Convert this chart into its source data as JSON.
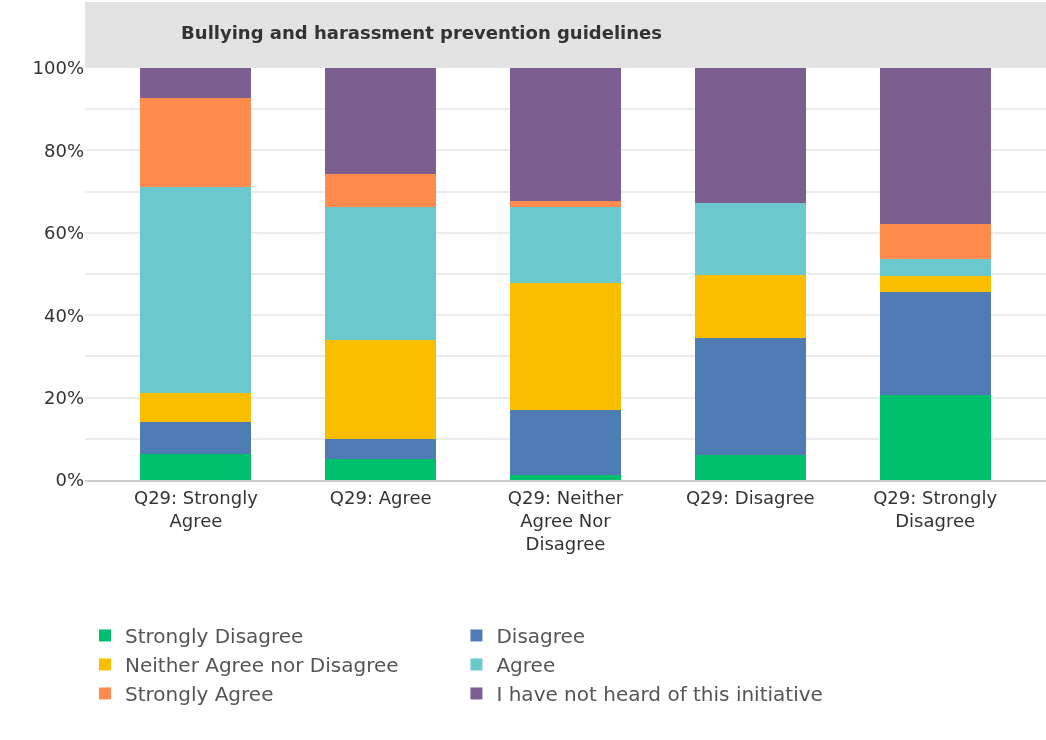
{
  "chart_data": {
    "type": "bar",
    "stacked": true,
    "title": "Bullying and harassment prevention guidelines",
    "categories": [
      "Q29: Strongly Agree",
      "Q29: Agree",
      "Q29: Neither Agree Nor Disagree",
      "Q29: Disagree",
      "Q29: Strongly Disagree"
    ],
    "series": [
      {
        "name": "Strongly Disagree",
        "color": "#00bf6f",
        "values": [
          6.4,
          5.0,
          1.1,
          6.1,
          20.6
        ]
      },
      {
        "name": "Disagree",
        "color": "#507cb6",
        "values": [
          7.6,
          4.9,
          15.9,
          28.4,
          25.0
        ]
      },
      {
        "name": "Neither Agree nor Disagree",
        "color": "#f9be00",
        "values": [
          7.0,
          24.2,
          30.7,
          15.2,
          4.0
        ]
      },
      {
        "name": "Agree",
        "color": "#6bc8cd",
        "values": [
          50.2,
          32.1,
          18.6,
          17.6,
          4.1
        ]
      },
      {
        "name": "Strongly Agree",
        "color": "#ff8b4f",
        "values": [
          21.6,
          8.0,
          1.4,
          0,
          8.5
        ]
      },
      {
        "name": "I have not heard of this initiative",
        "color": "#7d5e90",
        "values": [
          7.2,
          25.8,
          32.3,
          32.7,
          37.8
        ]
      }
    ],
    "ylim": [
      0,
      100
    ],
    "yticks": [
      {
        "value": 0,
        "label": "0%"
      },
      {
        "value": 10,
        "label": null
      },
      {
        "value": 20,
        "label": "20%"
      },
      {
        "value": 30,
        "label": null
      },
      {
        "value": 40,
        "label": "40%"
      },
      {
        "value": 50,
        "label": null
      },
      {
        "value": 60,
        "label": "60%"
      },
      {
        "value": 70,
        "label": null
      },
      {
        "value": 80,
        "label": "80%"
      },
      {
        "value": 90,
        "label": null
      },
      {
        "value": 100,
        "label": "100%"
      }
    ],
    "grid": "y",
    "legend": "bottom"
  }
}
